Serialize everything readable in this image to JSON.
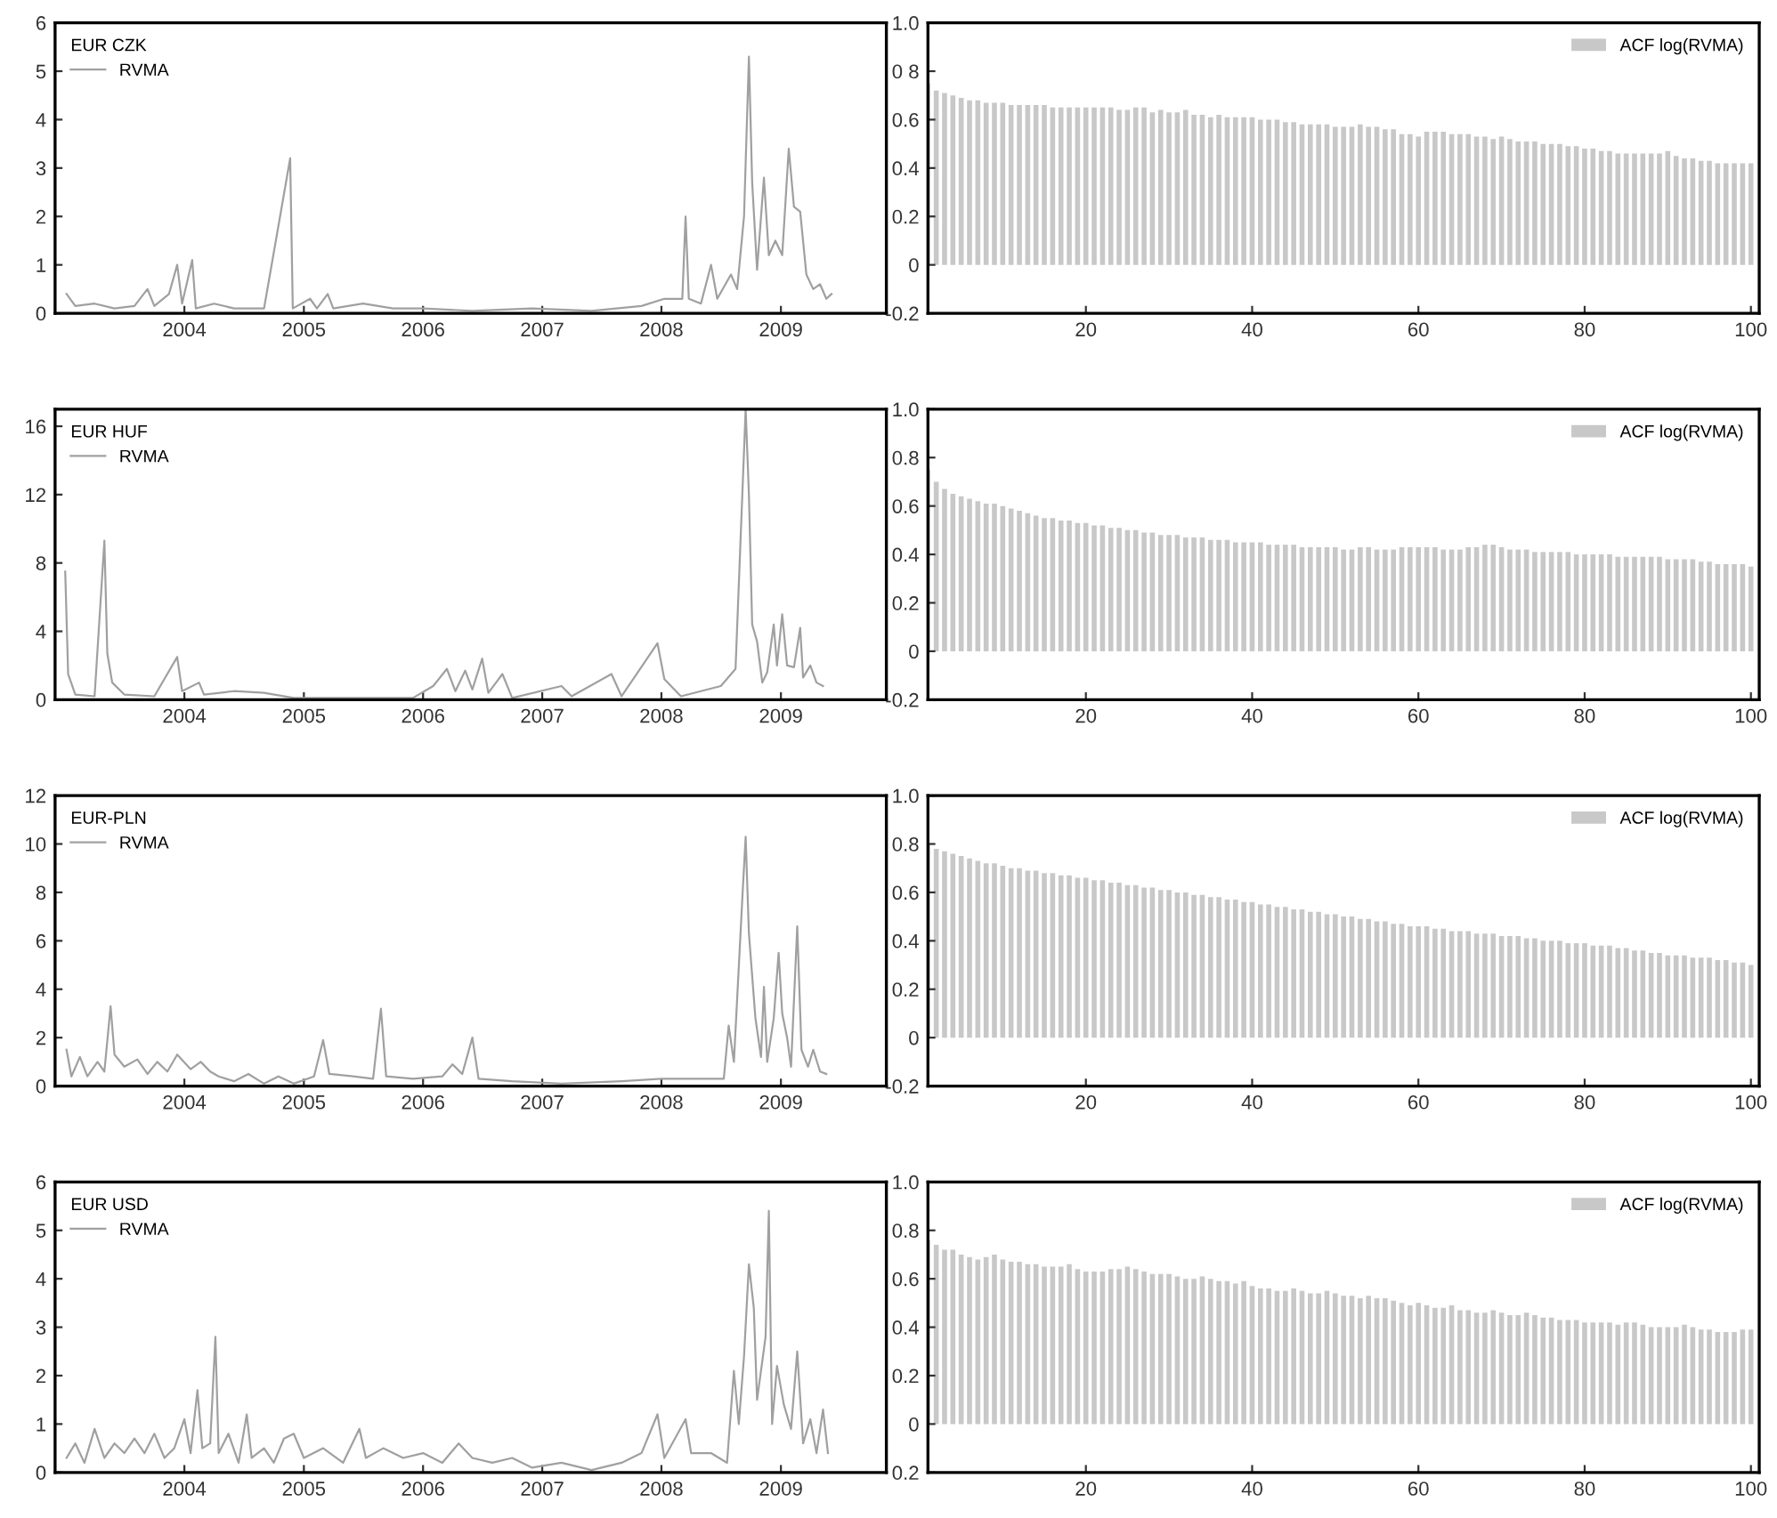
{
  "chart_data": [
    {
      "type": "line",
      "legend_title": "EUR CZK",
      "legend": "top left",
      "grid": false,
      "xlim": [
        "2002-12-01",
        "2009-11-20"
      ],
      "ylim": [
        0,
        6
      ],
      "yticks": [
        0,
        1,
        2,
        3,
        4,
        5,
        6
      ],
      "xticks": [
        {
          "value": "2004-01-01",
          "label": "2004"
        },
        {
          "value": "2005-01-01",
          "label": "2005"
        },
        {
          "value": "2006-01-01",
          "label": "2006"
        },
        {
          "value": "2007-01-01",
          "label": "2007"
        },
        {
          "value": "2008-01-01",
          "label": "2008"
        },
        {
          "value": "2009-01-01",
          "label": "2009"
        }
      ],
      "x": [
        "2003-01-05",
        "2003-02-01",
        "2003-04-01",
        "2003-06-01",
        "2003-08-01",
        "2003-09-10",
        "2003-10-01",
        "2003-11-15",
        "2003-12-10",
        "2003-12-25",
        "2004-01-25",
        "2004-02-05",
        "2004-04-01",
        "2004-06-01",
        "2004-09-01",
        "2004-11-20",
        "2004-11-28",
        "2005-01-20",
        "2005-02-10",
        "2005-03-15",
        "2005-04-01",
        "2005-07-01",
        "2005-10-01",
        "2006-01-01",
        "2006-06-01",
        "2006-12-01",
        "2007-06-01",
        "2007-11-01",
        "2008-01-10",
        "2008-03-05",
        "2008-03-15",
        "2008-03-25",
        "2008-05-01",
        "2008-06-01",
        "2008-06-20",
        "2008-08-01",
        "2008-08-20",
        "2008-09-10",
        "2008-09-25",
        "2008-10-05",
        "2008-10-20",
        "2008-11-10",
        "2008-11-25",
        "2008-12-15",
        "2009-01-05",
        "2009-01-25",
        "2009-02-10",
        "2009-03-01",
        "2009-03-20",
        "2009-04-10",
        "2009-05-01",
        "2009-05-20",
        "2009-06-05"
      ],
      "series": [
        {
          "name": "RVMA",
          "color": "#a0a0a0",
          "values": [
            0.4,
            0.15,
            0.2,
            0.1,
            0.15,
            0.5,
            0.15,
            0.4,
            1.0,
            0.2,
            1.1,
            0.1,
            0.2,
            0.1,
            0.1,
            3.2,
            0.1,
            0.3,
            0.1,
            0.4,
            0.1,
            0.2,
            0.1,
            0.1,
            0.05,
            0.1,
            0.05,
            0.15,
            0.3,
            0.3,
            2.0,
            0.3,
            0.2,
            1.0,
            0.3,
            0.8,
            0.5,
            2.0,
            5.3,
            2.7,
            0.9,
            2.8,
            1.2,
            1.5,
            1.2,
            3.4,
            2.2,
            2.1,
            0.8,
            0.5,
            0.6,
            0.3,
            0.4
          ]
        }
      ]
    },
    {
      "type": "bar",
      "legend": "top right",
      "grid": false,
      "xlim": [
        1,
        101
      ],
      "xticks": [
        20,
        40,
        60,
        80,
        100
      ],
      "ylim": [
        -0.2,
        1.0
      ],
      "yticks": [
        {
          "value": -0.2,
          "label": "-0.2"
        },
        0,
        {
          "value": 0.2,
          "label": "0.2"
        },
        {
          "value": 0.4,
          "label": "0.4"
        },
        {
          "value": 0.6,
          "label": "0.6"
        },
        {
          "value": 0.8,
          "label": "0 8"
        },
        {
          "value": 1.0,
          "label": "1.0"
        }
      ],
      "x": [
        1,
        2,
        3,
        4,
        5,
        6,
        7,
        8,
        9,
        10,
        11,
        12,
        13,
        14,
        15,
        16,
        17,
        18,
        19,
        20,
        21,
        22,
        23,
        24,
        25,
        26,
        27,
        28,
        29,
        30,
        31,
        32,
        33,
        34,
        35,
        36,
        37,
        38,
        39,
        40,
        41,
        42,
        43,
        44,
        45,
        46,
        47,
        48,
        49,
        50,
        51,
        52,
        53,
        54,
        55,
        56,
        57,
        58,
        59,
        60,
        61,
        62,
        63,
        64,
        65,
        66,
        67,
        68,
        69,
        70,
        71,
        72,
        73,
        74,
        75,
        76,
        77,
        78,
        79,
        80,
        81,
        82,
        83,
        84,
        85,
        86,
        87,
        88,
        89,
        90,
        91,
        92,
        93,
        94,
        95,
        96,
        97,
        98,
        99,
        100
      ],
      "series": [
        {
          "name": "ACF log(RVMA)",
          "color": "#c8c8c8",
          "values": [
            0.75,
            0.72,
            0.71,
            0.7,
            0.69,
            0.68,
            0.68,
            0.67,
            0.67,
            0.67,
            0.66,
            0.66,
            0.66,
            0.66,
            0.66,
            0.65,
            0.65,
            0.65,
            0.65,
            0.65,
            0.65,
            0.65,
            0.65,
            0.64,
            0.64,
            0.65,
            0.65,
            0.63,
            0.64,
            0.63,
            0.63,
            0.64,
            0.62,
            0.62,
            0.61,
            0.62,
            0.61,
            0.61,
            0.61,
            0.61,
            0.6,
            0.6,
            0.6,
            0.59,
            0.59,
            0.58,
            0.58,
            0.58,
            0.58,
            0.57,
            0.57,
            0.57,
            0.58,
            0.57,
            0.57,
            0.56,
            0.56,
            0.54,
            0.54,
            0.53,
            0.55,
            0.55,
            0.55,
            0.54,
            0.54,
            0.54,
            0.53,
            0.53,
            0.52,
            0.53,
            0.52,
            0.51,
            0.51,
            0.51,
            0.5,
            0.5,
            0.5,
            0.49,
            0.49,
            0.48,
            0.48,
            0.47,
            0.47,
            0.46,
            0.46,
            0.46,
            0.46,
            0.46,
            0.46,
            0.47,
            0.45,
            0.44,
            0.44,
            0.43,
            0.43,
            0.42,
            0.42,
            0.42,
            0.42,
            0.42
          ]
        }
      ]
    },
    {
      "type": "line",
      "legend_title": "EUR HUF",
      "legend": "top left",
      "grid": false,
      "xlim": [
        "2002-12-01",
        "2009-11-20"
      ],
      "ylim": [
        0,
        17
      ],
      "yticks": [
        0,
        4,
        8,
        12,
        16
      ],
      "xticks": [
        {
          "value": "2004-01-01",
          "label": "2004"
        },
        {
          "value": "2005-01-01",
          "label": "2005"
        },
        {
          "value": "2006-01-01",
          "label": "2006"
        },
        {
          "value": "2007-01-01",
          "label": "2007"
        },
        {
          "value": "2008-01-01",
          "label": "2008"
        },
        {
          "value": "2009-01-01",
          "label": "2009"
        }
      ],
      "x": [
        "2003-01-01",
        "2003-01-10",
        "2003-02-01",
        "2003-04-01",
        "2003-05-01",
        "2003-05-10",
        "2003-05-25",
        "2003-07-01",
        "2003-10-01",
        "2003-12-10",
        "2003-12-25",
        "2004-02-15",
        "2004-03-01",
        "2004-06-01",
        "2004-09-01",
        "2004-12-01",
        "2005-06-01",
        "2005-12-01",
        "2006-02-01",
        "2006-03-15",
        "2006-04-10",
        "2006-05-10",
        "2006-06-01",
        "2006-07-01",
        "2006-07-20",
        "2006-09-01",
        "2006-10-01",
        "2007-03-01",
        "2007-04-01",
        "2007-08-01",
        "2007-09-01",
        "2007-12-20",
        "2008-01-10",
        "2008-03-01",
        "2008-07-01",
        "2008-08-15",
        "2008-09-15",
        "2008-09-25",
        "2008-10-05",
        "2008-10-20",
        "2008-11-05",
        "2008-11-20",
        "2008-12-10",
        "2008-12-20",
        "2009-01-05",
        "2009-01-20",
        "2009-02-10",
        "2009-03-01",
        "2009-03-10",
        "2009-04-01",
        "2009-04-20",
        "2009-05-10"
      ],
      "series": [
        {
          "name": "RVMA",
          "color": "#a0a0a0",
          "values": [
            7.5,
            1.5,
            0.3,
            0.2,
            9.3,
            2.7,
            1.0,
            0.3,
            0.2,
            2.5,
            0.5,
            1.0,
            0.3,
            0.5,
            0.4,
            0.1,
            0.1,
            0.1,
            0.8,
            1.8,
            0.5,
            1.7,
            0.6,
            2.4,
            0.4,
            1.5,
            0.1,
            0.8,
            0.2,
            1.5,
            0.2,
            3.3,
            1.2,
            0.2,
            0.8,
            1.8,
            17.0,
            12.0,
            4.4,
            3.4,
            1.0,
            1.6,
            4.4,
            2.0,
            5.0,
            2.0,
            1.9,
            4.2,
            1.3,
            2.0,
            1.0,
            0.8
          ]
        }
      ]
    },
    {
      "type": "bar",
      "legend": "top right",
      "grid": false,
      "xlim": [
        1,
        101
      ],
      "xticks": [
        20,
        40,
        60,
        80,
        100
      ],
      "ylim": [
        -0.2,
        1.0
      ],
      "yticks": [
        {
          "value": -0.2,
          "label": "-0.2"
        },
        0,
        {
          "value": 0.2,
          "label": "0.2"
        },
        {
          "value": 0.4,
          "label": "0.4"
        },
        {
          "value": 0.6,
          "label": "0.6"
        },
        {
          "value": 0.8,
          "label": "0.8"
        },
        {
          "value": 1.0,
          "label": "1.0"
        }
      ],
      "x": [
        1,
        2,
        3,
        4,
        5,
        6,
        7,
        8,
        9,
        10,
        11,
        12,
        13,
        14,
        15,
        16,
        17,
        18,
        19,
        20,
        21,
        22,
        23,
        24,
        25,
        26,
        27,
        28,
        29,
        30,
        31,
        32,
        33,
        34,
        35,
        36,
        37,
        38,
        39,
        40,
        41,
        42,
        43,
        44,
        45,
        46,
        47,
        48,
        49,
        50,
        51,
        52,
        53,
        54,
        55,
        56,
        57,
        58,
        59,
        60,
        61,
        62,
        63,
        64,
        65,
        66,
        67,
        68,
        69,
        70,
        71,
        72,
        73,
        74,
        75,
        76,
        77,
        78,
        79,
        80,
        81,
        82,
        83,
        84,
        85,
        86,
        87,
        88,
        89,
        90,
        91,
        92,
        93,
        94,
        95,
        96,
        97,
        98,
        99,
        100
      ],
      "series": [
        {
          "name": "ACF log(RVMA)",
          "color": "#c8c8c8",
          "values": [
            0.75,
            0.7,
            0.67,
            0.65,
            0.64,
            0.63,
            0.62,
            0.61,
            0.61,
            0.6,
            0.59,
            0.58,
            0.57,
            0.56,
            0.55,
            0.55,
            0.54,
            0.54,
            0.53,
            0.53,
            0.52,
            0.52,
            0.51,
            0.51,
            0.5,
            0.5,
            0.49,
            0.49,
            0.48,
            0.48,
            0.48,
            0.47,
            0.47,
            0.47,
            0.46,
            0.46,
            0.46,
            0.45,
            0.45,
            0.45,
            0.45,
            0.44,
            0.44,
            0.44,
            0.44,
            0.43,
            0.43,
            0.43,
            0.43,
            0.43,
            0.42,
            0.42,
            0.43,
            0.43,
            0.42,
            0.42,
            0.42,
            0.43,
            0.43,
            0.43,
            0.43,
            0.43,
            0.42,
            0.42,
            0.42,
            0.43,
            0.43,
            0.44,
            0.44,
            0.43,
            0.42,
            0.42,
            0.42,
            0.41,
            0.41,
            0.41,
            0.41,
            0.41,
            0.4,
            0.4,
            0.4,
            0.4,
            0.4,
            0.39,
            0.39,
            0.39,
            0.39,
            0.39,
            0.39,
            0.38,
            0.38,
            0.38,
            0.38,
            0.37,
            0.37,
            0.36,
            0.36,
            0.36,
            0.36,
            0.35
          ]
        }
      ]
    },
    {
      "type": "line",
      "legend_title": "EUR-PLN",
      "legend": "top left",
      "grid": false,
      "xlim": [
        "2002-12-01",
        "2009-11-20"
      ],
      "ylim": [
        0,
        12
      ],
      "yticks": [
        0,
        2,
        4,
        6,
        8,
        10,
        12
      ],
      "xticks": [
        {
          "value": "2004-01-01",
          "label": "2004"
        },
        {
          "value": "2005-01-01",
          "label": "2005"
        },
        {
          "value": "2006-01-01",
          "label": "2006"
        },
        {
          "value": "2007-01-01",
          "label": "2007"
        },
        {
          "value": "2008-01-01",
          "label": "2008"
        },
        {
          "value": "2009-01-01",
          "label": "2009"
        }
      ],
      "x": [
        "2003-01-05",
        "2003-01-20",
        "2003-02-15",
        "2003-03-10",
        "2003-04-10",
        "2003-05-01",
        "2003-05-20",
        "2003-06-01",
        "2003-07-01",
        "2003-08-10",
        "2003-09-10",
        "2003-10-10",
        "2003-11-10",
        "2003-12-10",
        "2004-01-20",
        "2004-02-20",
        "2004-03-20",
        "2004-04-15",
        "2004-06-01",
        "2004-07-15",
        "2004-09-01",
        "2004-10-15",
        "2004-12-01",
        "2005-02-01",
        "2005-03-01",
        "2005-03-20",
        "2005-06-01",
        "2005-08-01",
        "2005-08-25",
        "2005-09-10",
        "2005-12-01",
        "2006-03-01",
        "2006-04-01",
        "2006-05-01",
        "2006-06-01",
        "2006-06-20",
        "2006-10-01",
        "2007-03-01",
        "2007-09-01",
        "2008-01-01",
        "2008-04-01",
        "2008-07-10",
        "2008-07-25",
        "2008-08-10",
        "2008-09-05",
        "2008-09-15",
        "2008-09-25",
        "2008-10-15",
        "2008-11-01",
        "2008-11-10",
        "2008-11-20",
        "2008-12-10",
        "2008-12-25",
        "2009-01-05",
        "2009-01-20",
        "2009-02-01",
        "2009-02-20",
        "2009-03-05",
        "2009-03-25",
        "2009-04-10",
        "2009-05-01",
        "2009-05-20"
      ],
      "series": [
        {
          "name": "RVMA",
          "color": "#a0a0a0",
          "values": [
            1.5,
            0.4,
            1.2,
            0.4,
            1.0,
            0.6,
            3.3,
            1.3,
            0.8,
            1.1,
            0.5,
            1.0,
            0.6,
            1.3,
            0.7,
            1.0,
            0.6,
            0.4,
            0.2,
            0.5,
            0.1,
            0.4,
            0.1,
            0.4,
            1.9,
            0.5,
            0.4,
            0.3,
            3.2,
            0.4,
            0.3,
            0.4,
            0.9,
            0.5,
            2.0,
            0.3,
            0.2,
            0.1,
            0.2,
            0.3,
            0.3,
            0.3,
            2.5,
            1.0,
            7.8,
            10.3,
            6.3,
            2.8,
            1.2,
            4.1,
            1.0,
            2.8,
            5.5,
            3.0,
            2.0,
            0.8,
            6.6,
            1.5,
            0.8,
            1.5,
            0.6,
            0.5
          ]
        }
      ]
    },
    {
      "type": "bar",
      "legend": "top right",
      "grid": false,
      "xlim": [
        1,
        101
      ],
      "xticks": [
        20,
        40,
        60,
        80,
        100
      ],
      "ylim": [
        -0.2,
        1.0
      ],
      "yticks": [
        {
          "value": -0.2,
          "label": "-0.2"
        },
        0,
        {
          "value": 0.2,
          "label": "0.2"
        },
        {
          "value": 0.4,
          "label": "0.4"
        },
        {
          "value": 0.6,
          "label": "0.6"
        },
        {
          "value": 0.8,
          "label": "0.8"
        },
        {
          "value": 1.0,
          "label": "1.0"
        }
      ],
      "x": [
        1,
        2,
        3,
        4,
        5,
        6,
        7,
        8,
        9,
        10,
        11,
        12,
        13,
        14,
        15,
        16,
        17,
        18,
        19,
        20,
        21,
        22,
        23,
        24,
        25,
        26,
        27,
        28,
        29,
        30,
        31,
        32,
        33,
        34,
        35,
        36,
        37,
        38,
        39,
        40,
        41,
        42,
        43,
        44,
        45,
        46,
        47,
        48,
        49,
        50,
        51,
        52,
        53,
        54,
        55,
        56,
        57,
        58,
        59,
        60,
        61,
        62,
        63,
        64,
        65,
        66,
        67,
        68,
        69,
        70,
        71,
        72,
        73,
        74,
        75,
        76,
        77,
        78,
        79,
        80,
        81,
        82,
        83,
        84,
        85,
        86,
        87,
        88,
        89,
        90,
        91,
        92,
        93,
        94,
        95,
        96,
        97,
        98,
        99,
        100
      ],
      "series": [
        {
          "name": "ACF log(RVMA)",
          "color": "#c8c8c8",
          "values": [
            0.8,
            0.78,
            0.77,
            0.76,
            0.75,
            0.74,
            0.73,
            0.72,
            0.72,
            0.71,
            0.7,
            0.7,
            0.69,
            0.69,
            0.68,
            0.68,
            0.67,
            0.67,
            0.66,
            0.66,
            0.65,
            0.65,
            0.64,
            0.64,
            0.63,
            0.63,
            0.62,
            0.62,
            0.61,
            0.61,
            0.6,
            0.6,
            0.59,
            0.59,
            0.58,
            0.58,
            0.57,
            0.57,
            0.56,
            0.56,
            0.55,
            0.55,
            0.54,
            0.54,
            0.53,
            0.53,
            0.52,
            0.52,
            0.51,
            0.51,
            0.5,
            0.5,
            0.49,
            0.49,
            0.48,
            0.48,
            0.47,
            0.47,
            0.46,
            0.46,
            0.46,
            0.45,
            0.45,
            0.44,
            0.44,
            0.44,
            0.43,
            0.43,
            0.43,
            0.42,
            0.42,
            0.42,
            0.41,
            0.41,
            0.4,
            0.4,
            0.4,
            0.39,
            0.39,
            0.39,
            0.38,
            0.38,
            0.38,
            0.37,
            0.37,
            0.36,
            0.36,
            0.35,
            0.35,
            0.34,
            0.34,
            0.34,
            0.33,
            0.33,
            0.33,
            0.32,
            0.32,
            0.31,
            0.31,
            0.3
          ]
        }
      ]
    },
    {
      "type": "line",
      "legend_title": "EUR USD",
      "legend": "top left",
      "grid": false,
      "xlim": [
        "2002-12-01",
        "2009-11-20"
      ],
      "ylim": [
        0,
        6
      ],
      "yticks": [
        0,
        1,
        2,
        3,
        4,
        5,
        6
      ],
      "xticks": [
        {
          "value": "2004-01-01",
          "label": "2004"
        },
        {
          "value": "2005-01-01",
          "label": "2005"
        },
        {
          "value": "2006-01-01",
          "label": "2006"
        },
        {
          "value": "2007-01-01",
          "label": "2007"
        },
        {
          "value": "2008-01-01",
          "label": "2008"
        },
        {
          "value": "2009-01-01",
          "label": "2009"
        }
      ],
      "x": [
        "2003-01-05",
        "2003-02-01",
        "2003-03-01",
        "2003-04-01",
        "2003-05-01",
        "2003-06-01",
        "2003-07-01",
        "2003-08-01",
        "2003-09-01",
        "2003-10-01",
        "2003-11-01",
        "2003-12-01",
        "2004-01-01",
        "2004-01-20",
        "2004-02-10",
        "2004-02-25",
        "2004-03-20",
        "2004-04-05",
        "2004-04-15",
        "2004-05-15",
        "2004-06-15",
        "2004-07-10",
        "2004-07-25",
        "2004-09-01",
        "2004-10-01",
        "2004-11-01",
        "2004-12-01",
        "2005-01-01",
        "2005-03-01",
        "2005-05-01",
        "2005-06-20",
        "2005-07-10",
        "2005-09-01",
        "2005-11-01",
        "2006-01-01",
        "2006-03-01",
        "2006-04-20",
        "2006-06-01",
        "2006-08-01",
        "2006-10-01",
        "2006-12-01",
        "2007-03-01",
        "2007-06-01",
        "2007-09-01",
        "2007-11-01",
        "2007-12-20",
        "2008-01-10",
        "2008-03-15",
        "2008-04-01",
        "2008-06-01",
        "2008-07-20",
        "2008-08-10",
        "2008-08-25",
        "2008-09-10",
        "2008-09-25",
        "2008-10-10",
        "2008-10-20",
        "2008-11-15",
        "2008-11-25",
        "2008-12-05",
        "2008-12-20",
        "2009-01-10",
        "2009-02-01",
        "2009-02-20",
        "2009-03-10",
        "2009-04-01",
        "2009-04-20",
        "2009-05-10",
        "2009-05-25"
      ],
      "series": [
        {
          "name": "RVMA",
          "color": "#a0a0a0",
          "values": [
            0.3,
            0.6,
            0.2,
            0.9,
            0.3,
            0.6,
            0.4,
            0.7,
            0.4,
            0.8,
            0.3,
            0.5,
            1.1,
            0.4,
            1.7,
            0.5,
            0.6,
            2.8,
            0.4,
            0.8,
            0.2,
            1.2,
            0.3,
            0.5,
            0.2,
            0.7,
            0.8,
            0.3,
            0.5,
            0.2,
            0.9,
            0.3,
            0.5,
            0.3,
            0.4,
            0.2,
            0.6,
            0.3,
            0.2,
            0.3,
            0.1,
            0.2,
            0.05,
            0.2,
            0.4,
            1.2,
            0.3,
            1.1,
            0.4,
            0.4,
            0.2,
            2.1,
            1.0,
            2.4,
            4.3,
            3.4,
            1.5,
            2.8,
            5.4,
            1.0,
            2.2,
            1.4,
            0.9,
            2.5,
            0.6,
            1.1,
            0.4,
            1.3,
            0.4
          ]
        }
      ]
    },
    {
      "type": "bar",
      "legend": "top right",
      "grid": false,
      "xlim": [
        1,
        101
      ],
      "xticks": [
        20,
        40,
        60,
        80,
        100
      ],
      "ylim": [
        -0.2,
        1.0
      ],
      "yticks": [
        {
          "value": -0.2,
          "label": "0.2"
        },
        0,
        {
          "value": 0.2,
          "label": "0.2"
        },
        {
          "value": 0.4,
          "label": "0.4"
        },
        {
          "value": 0.6,
          "label": "0.6"
        },
        {
          "value": 0.8,
          "label": "0.8"
        },
        {
          "value": 1.0,
          "label": "1.0"
        }
      ],
      "x": [
        1,
        2,
        3,
        4,
        5,
        6,
        7,
        8,
        9,
        10,
        11,
        12,
        13,
        14,
        15,
        16,
        17,
        18,
        19,
        20,
        21,
        22,
        23,
        24,
        25,
        26,
        27,
        28,
        29,
        30,
        31,
        32,
        33,
        34,
        35,
        36,
        37,
        38,
        39,
        40,
        41,
        42,
        43,
        44,
        45,
        46,
        47,
        48,
        49,
        50,
        51,
        52,
        53,
        54,
        55,
        56,
        57,
        58,
        59,
        60,
        61,
        62,
        63,
        64,
        65,
        66,
        67,
        68,
        69,
        70,
        71,
        72,
        73,
        74,
        75,
        76,
        77,
        78,
        79,
        80,
        81,
        82,
        83,
        84,
        85,
        86,
        87,
        88,
        89,
        90,
        91,
        92,
        93,
        94,
        95,
        96,
        97,
        98,
        99,
        100
      ],
      "series": [
        {
          "name": "ACF log(RVMA)",
          "color": "#c8c8c8",
          "values": [
            0.76,
            0.74,
            0.72,
            0.72,
            0.7,
            0.69,
            0.68,
            0.69,
            0.7,
            0.68,
            0.67,
            0.67,
            0.66,
            0.66,
            0.65,
            0.65,
            0.65,
            0.66,
            0.64,
            0.63,
            0.63,
            0.63,
            0.64,
            0.64,
            0.65,
            0.64,
            0.63,
            0.62,
            0.62,
            0.62,
            0.61,
            0.6,
            0.6,
            0.61,
            0.6,
            0.59,
            0.59,
            0.58,
            0.59,
            0.57,
            0.56,
            0.56,
            0.55,
            0.55,
            0.56,
            0.55,
            0.54,
            0.54,
            0.55,
            0.54,
            0.53,
            0.53,
            0.52,
            0.53,
            0.52,
            0.52,
            0.51,
            0.5,
            0.49,
            0.5,
            0.49,
            0.48,
            0.48,
            0.49,
            0.47,
            0.47,
            0.46,
            0.46,
            0.47,
            0.46,
            0.45,
            0.45,
            0.46,
            0.45,
            0.44,
            0.44,
            0.43,
            0.43,
            0.43,
            0.42,
            0.42,
            0.42,
            0.42,
            0.41,
            0.42,
            0.42,
            0.41,
            0.4,
            0.4,
            0.4,
            0.4,
            0.41,
            0.4,
            0.39,
            0.39,
            0.38,
            0.38,
            0.38,
            0.39,
            0.39
          ]
        }
      ]
    }
  ]
}
